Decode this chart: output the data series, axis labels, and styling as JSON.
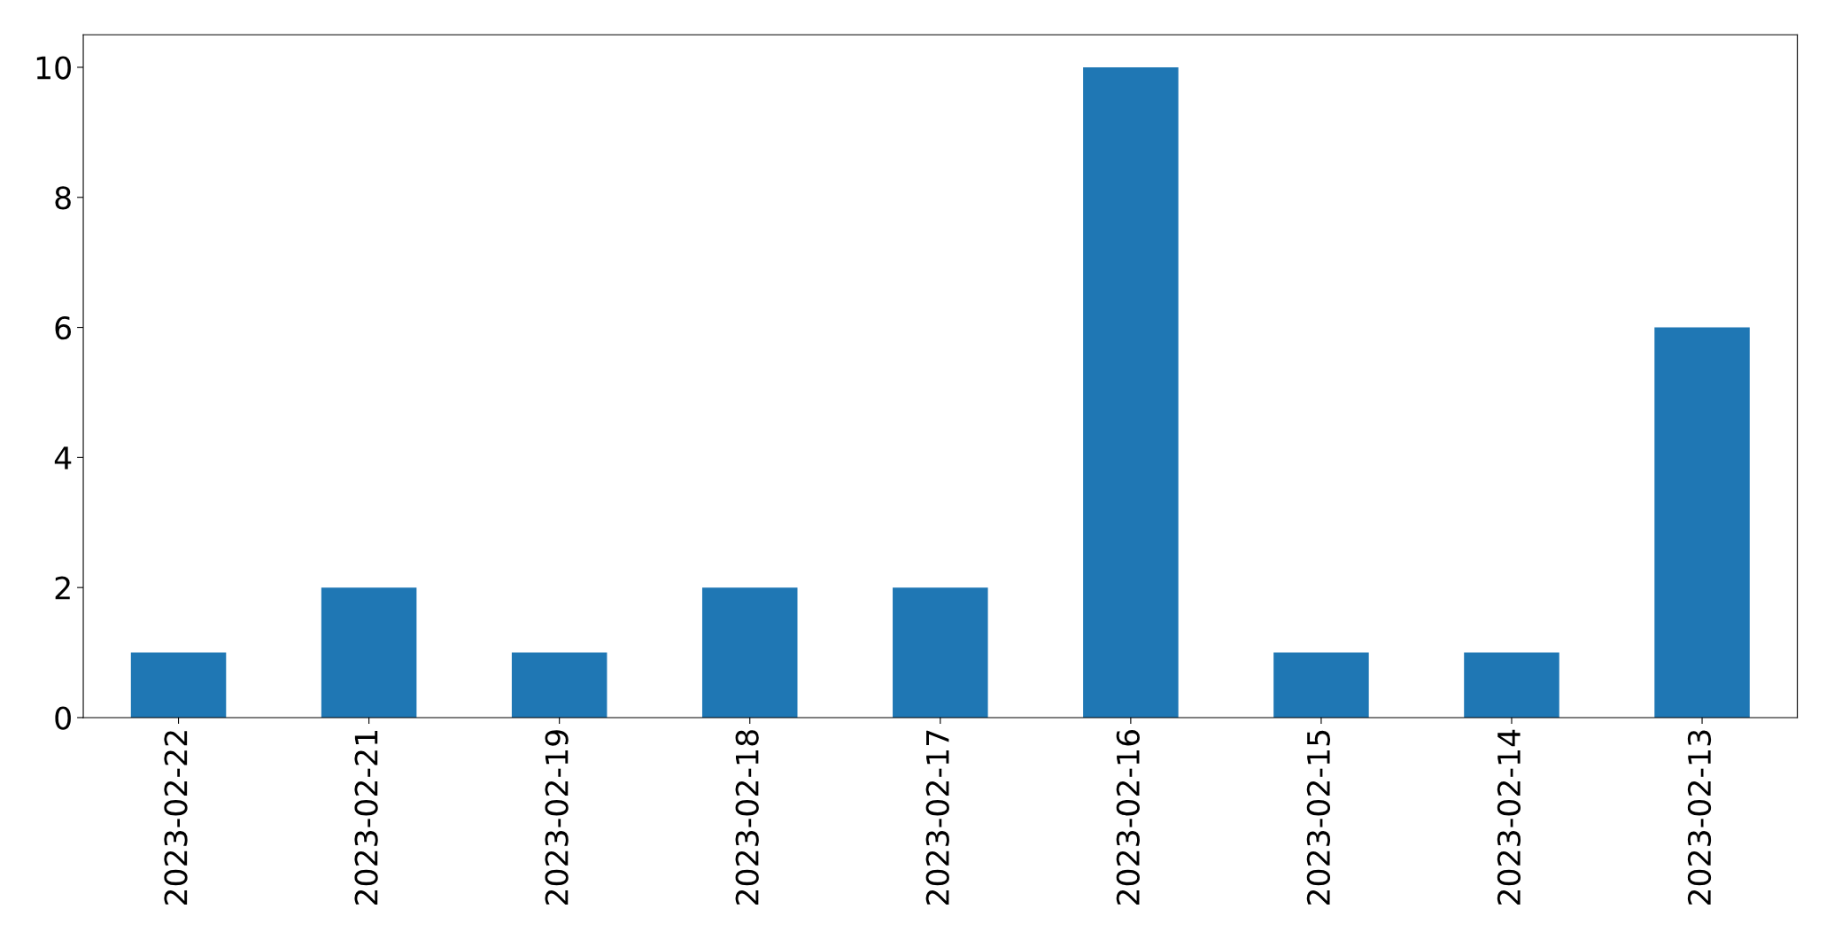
{
  "chart_data": {
    "type": "bar",
    "categories": [
      "2023-02-22",
      "2023-02-21",
      "2023-02-19",
      "2023-02-18",
      "2023-02-17",
      "2023-02-16",
      "2023-02-15",
      "2023-02-14",
      "2023-02-13"
    ],
    "values": [
      1,
      2,
      1,
      2,
      2,
      10,
      1,
      1,
      6
    ],
    "color": "#1f77b4",
    "ylim": [
      0,
      10.5
    ],
    "yticks": [
      0,
      2,
      4,
      6,
      8,
      10
    ]
  }
}
